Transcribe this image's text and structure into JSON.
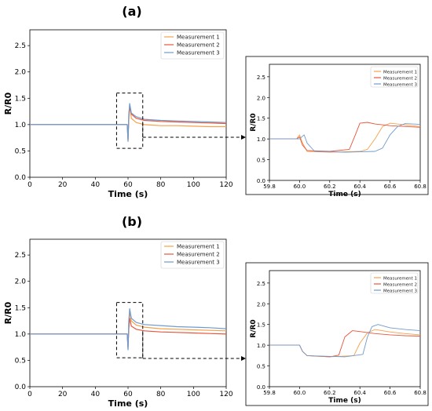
{
  "figure": {
    "colors": {
      "Measurement 1": "#f5a04c",
      "Measurement 2": "#e8553a",
      "Measurement 3": "#6f9bcc"
    }
  },
  "chart_data": [
    {
      "id": "a-main",
      "panel_label": "(a)",
      "type": "line",
      "xlabel": "Time (s)",
      "ylabel": "R/R0",
      "xlim": [
        0,
        120
      ],
      "ylim": [
        0,
        2.8
      ],
      "xticks": [
        0,
        20,
        40,
        60,
        80,
        100,
        120
      ],
      "yticks": [
        0.0,
        0.5,
        1.0,
        1.5,
        2.0,
        2.5
      ],
      "ytick_labels": [
        "0.0",
        "0.5",
        "1.0",
        "1.5",
        "2.0",
        "2.5"
      ],
      "legend": "top-right",
      "zoom_box": {
        "x": [
          53,
          69
        ],
        "y": [
          0.55,
          1.6
        ]
      },
      "series": [
        {
          "name": "Measurement 1",
          "x": [
            0,
            20,
            40,
            59.5,
            60,
            60.5,
            61,
            62,
            65,
            70,
            80,
            90,
            100,
            110,
            120
          ],
          "y": [
            1.0,
            1.0,
            1.0,
            1.0,
            0.7,
            1.1,
            1.38,
            1.12,
            1.04,
            1.0,
            0.98,
            0.98,
            0.97,
            0.96,
            0.96
          ]
        },
        {
          "name": "Measurement 2",
          "x": [
            0,
            20,
            40,
            59.5,
            60,
            60.5,
            61,
            62,
            65,
            70,
            80,
            90,
            100,
            110,
            120
          ],
          "y": [
            1.0,
            1.0,
            1.0,
            1.0,
            0.72,
            1.15,
            1.35,
            1.2,
            1.12,
            1.08,
            1.06,
            1.05,
            1.04,
            1.03,
            1.02
          ]
        },
        {
          "name": "Measurement 3",
          "x": [
            0,
            20,
            40,
            59.5,
            60,
            60.5,
            61,
            62,
            65,
            70,
            80,
            90,
            100,
            110,
            120
          ],
          "y": [
            1.0,
            1.0,
            1.0,
            1.0,
            0.68,
            1.2,
            1.4,
            1.22,
            1.15,
            1.1,
            1.08,
            1.07,
            1.06,
            1.05,
            1.04
          ]
        }
      ]
    },
    {
      "id": "a-zoom",
      "type": "line",
      "xlabel": "Time (s)",
      "ylabel": "R/R0",
      "xlim": [
        59.8,
        60.8
      ],
      "ylim": [
        0,
        2.8
      ],
      "xticks": [
        59.8,
        60.0,
        60.2,
        60.4,
        60.6,
        60.8
      ],
      "xtick_labels": [
        "59.8",
        "60.0",
        "60.2",
        "60.4",
        "60.6",
        "60.8"
      ],
      "yticks": [
        0.0,
        0.5,
        1.0,
        1.5,
        2.0,
        2.5
      ],
      "ytick_labels": [
        "0.0",
        "0.5",
        "1.0",
        "1.5",
        "2.0",
        "2.5"
      ],
      "legend": "top-right",
      "series": [
        {
          "name": "Measurement 1",
          "x": [
            59.8,
            59.98,
            60.0,
            60.02,
            60.05,
            60.2,
            60.4,
            60.45,
            60.5,
            60.55,
            60.6,
            60.7,
            60.8
          ],
          "y": [
            1.0,
            1.0,
            1.1,
            0.9,
            0.7,
            0.68,
            0.7,
            0.75,
            1.0,
            1.3,
            1.38,
            1.34,
            1.3
          ]
        },
        {
          "name": "Measurement 2",
          "x": [
            59.8,
            59.98,
            60.0,
            60.02,
            60.05,
            60.2,
            60.33,
            60.37,
            60.4,
            60.45,
            60.5,
            60.6,
            60.7,
            60.8
          ],
          "y": [
            1.0,
            1.0,
            1.05,
            0.85,
            0.72,
            0.7,
            0.75,
            1.1,
            1.38,
            1.4,
            1.36,
            1.32,
            1.3,
            1.28
          ]
        },
        {
          "name": "Measurement 3",
          "x": [
            59.8,
            60.0,
            60.03,
            60.05,
            60.1,
            60.3,
            60.5,
            60.55,
            60.6,
            60.65,
            60.7,
            60.8
          ],
          "y": [
            1.0,
            1.0,
            1.1,
            0.9,
            0.7,
            0.68,
            0.7,
            0.78,
            1.1,
            1.3,
            1.37,
            1.35
          ]
        }
      ]
    },
    {
      "id": "b-main",
      "panel_label": "(b)",
      "type": "line",
      "xlabel": "Time (s)",
      "ylabel": "R/R0",
      "xlim": [
        0,
        120
      ],
      "ylim": [
        0,
        2.8
      ],
      "xticks": [
        0,
        20,
        40,
        60,
        80,
        100,
        120
      ],
      "yticks": [
        0.0,
        0.5,
        1.0,
        1.5,
        2.0,
        2.5
      ],
      "ytick_labels": [
        "0.0",
        "0.5",
        "1.0",
        "1.5",
        "2.0",
        "2.5"
      ],
      "legend": "top-right",
      "zoom_box": {
        "x": [
          53,
          69
        ],
        "y": [
          0.55,
          1.6
        ]
      },
      "series": [
        {
          "name": "Measurement 1",
          "x": [
            0,
            20,
            40,
            59.5,
            60,
            60.5,
            61,
            62,
            65,
            70,
            80,
            90,
            100,
            110,
            120
          ],
          "y": [
            1.0,
            1.0,
            1.0,
            1.0,
            0.72,
            1.2,
            1.42,
            1.25,
            1.17,
            1.13,
            1.1,
            1.09,
            1.08,
            1.07,
            1.06
          ]
        },
        {
          "name": "Measurement 2",
          "x": [
            0,
            20,
            40,
            59.5,
            60,
            60.5,
            61,
            62,
            65,
            70,
            80,
            90,
            100,
            110,
            120
          ],
          "y": [
            1.0,
            1.0,
            1.0,
            1.0,
            0.75,
            1.1,
            1.3,
            1.15,
            1.09,
            1.06,
            1.04,
            1.03,
            1.02,
            1.01,
            1.0
          ]
        },
        {
          "name": "Measurement 3",
          "x": [
            0,
            20,
            40,
            59.5,
            60,
            60.5,
            61,
            62,
            65,
            70,
            80,
            90,
            100,
            110,
            120
          ],
          "y": [
            1.0,
            1.0,
            1.0,
            1.0,
            0.7,
            1.25,
            1.48,
            1.3,
            1.22,
            1.18,
            1.16,
            1.14,
            1.13,
            1.12,
            1.1
          ]
        }
      ]
    },
    {
      "id": "b-zoom",
      "type": "line",
      "xlabel": "Time (s)",
      "ylabel": "R/R0",
      "xlim": [
        59.8,
        60.8
      ],
      "ylim": [
        0,
        2.8
      ],
      "xticks": [
        59.8,
        60.0,
        60.2,
        60.4,
        60.6,
        60.8
      ],
      "xtick_labels": [
        "59.8",
        "60.0",
        "60.2",
        "60.4",
        "60.6",
        "60.8"
      ],
      "yticks": [
        0.0,
        0.5,
        1.0,
        1.5,
        2.0,
        2.5
      ],
      "ytick_labels": [
        "0.0",
        "0.5",
        "1.0",
        "1.5",
        "2.0",
        "2.5"
      ],
      "legend": "top-right",
      "series": [
        {
          "name": "Measurement 1",
          "x": [
            59.8,
            59.98,
            60.0,
            60.02,
            60.05,
            60.2,
            60.36,
            60.4,
            60.45,
            60.5,
            60.6,
            60.7,
            60.8
          ],
          "y": [
            1.0,
            1.0,
            1.0,
            0.85,
            0.75,
            0.72,
            0.75,
            1.05,
            1.3,
            1.38,
            1.32,
            1.28,
            1.25
          ]
        },
        {
          "name": "Measurement 2",
          "x": [
            59.8,
            59.98,
            60.0,
            60.02,
            60.05,
            60.2,
            60.26,
            60.3,
            60.35,
            60.4,
            60.5,
            60.6,
            60.7,
            60.8
          ],
          "y": [
            1.0,
            1.0,
            1.0,
            0.85,
            0.75,
            0.72,
            0.76,
            1.2,
            1.35,
            1.33,
            1.28,
            1.25,
            1.23,
            1.22
          ]
        },
        {
          "name": "Measurement 3",
          "x": [
            59.8,
            59.98,
            60.0,
            60.02,
            60.05,
            60.3,
            60.42,
            60.45,
            60.48,
            60.52,
            60.6,
            60.7,
            60.8
          ],
          "y": [
            1.0,
            1.0,
            1.0,
            0.85,
            0.75,
            0.72,
            0.78,
            1.2,
            1.45,
            1.5,
            1.42,
            1.38,
            1.35
          ]
        }
      ]
    }
  ]
}
